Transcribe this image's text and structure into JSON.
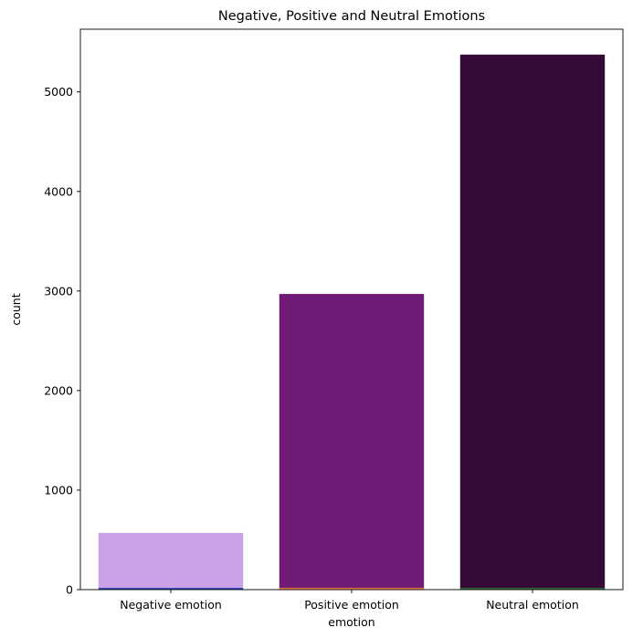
{
  "chart_data": {
    "type": "bar",
    "title": "Negative, Positive and Neutral Emotions",
    "xlabel": "emotion",
    "ylabel": "count",
    "categories": [
      "Negative emotion",
      "Positive emotion",
      "Neutral emotion"
    ],
    "values": [
      570,
      2970,
      5375
    ],
    "bar_colors": [
      "#c9a3e6",
      "#6f1a74",
      "#360a36"
    ],
    "baseline_colors": [
      "#3b4cc0",
      "#e08040",
      "#2f6b35"
    ],
    "ylim": [
      0,
      5630
    ],
    "yticks": [
      0,
      1000,
      2000,
      3000,
      4000,
      5000
    ],
    "grid": false,
    "legend": "none"
  }
}
